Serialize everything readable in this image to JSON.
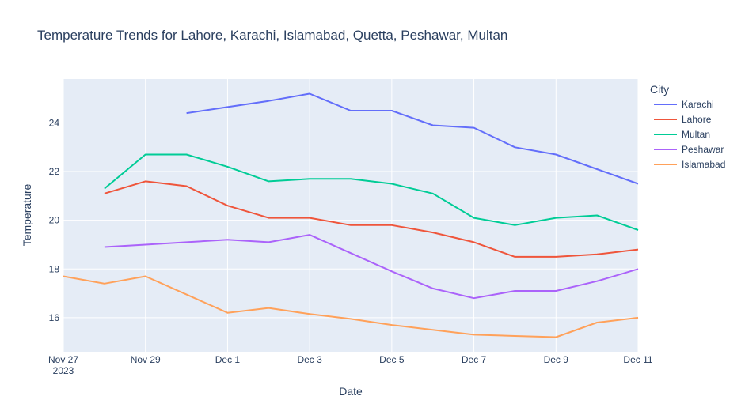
{
  "chart_data": {
    "type": "line",
    "title": "Temperature Trends for Lahore, Karachi, Islamabad, Quetta, Peshawar, Multan",
    "xlabel": "Date",
    "ylabel": "Temperature",
    "legend_title": "City",
    "legend_position": "right",
    "grid": true,
    "x": [
      "2023-11-27",
      "2023-11-28",
      "2023-11-29",
      "2023-11-30",
      "2023-12-01",
      "2023-12-02",
      "2023-12-03",
      "2023-12-04",
      "2023-12-05",
      "2023-12-06",
      "2023-12-07",
      "2023-12-08",
      "2023-12-09",
      "2023-12-10",
      "2023-12-11"
    ],
    "xlim": [
      "2023-11-27",
      "2023-12-11"
    ],
    "ylim": [
      14.6,
      25.8
    ],
    "x_ticks": [
      {
        "date": "2023-11-27",
        "label": "Nov 27",
        "sublabel": "2023"
      },
      {
        "date": "2023-11-29",
        "label": "Nov 29",
        "sublabel": ""
      },
      {
        "date": "2023-12-01",
        "label": "Dec 1",
        "sublabel": ""
      },
      {
        "date": "2023-12-03",
        "label": "Dec 3",
        "sublabel": ""
      },
      {
        "date": "2023-12-05",
        "label": "Dec 5",
        "sublabel": ""
      },
      {
        "date": "2023-12-07",
        "label": "Dec 7",
        "sublabel": ""
      },
      {
        "date": "2023-12-09",
        "label": "Dec 9",
        "sublabel": ""
      },
      {
        "date": "2023-12-11",
        "label": "Dec 11",
        "sublabel": ""
      }
    ],
    "y_ticks": [
      16,
      18,
      20,
      22,
      24
    ],
    "series": [
      {
        "name": "Karachi",
        "color": "#636efa",
        "values": [
          null,
          null,
          null,
          24.4,
          24.65,
          24.9,
          25.2,
          24.5,
          24.5,
          23.9,
          23.8,
          23.0,
          22.7,
          22.1,
          21.5
        ]
      },
      {
        "name": "Lahore",
        "color": "#ef553b",
        "values": [
          null,
          21.1,
          21.6,
          21.4,
          20.6,
          20.1,
          20.1,
          19.8,
          19.8,
          19.5,
          19.1,
          18.5,
          18.5,
          18.6,
          18.8
        ]
      },
      {
        "name": "Multan",
        "color": "#00cc96",
        "values": [
          null,
          21.3,
          22.7,
          22.7,
          22.2,
          21.6,
          21.7,
          21.7,
          21.5,
          21.1,
          20.1,
          19.8,
          20.1,
          20.2,
          19.6
        ]
      },
      {
        "name": "Peshawar",
        "color": "#ab63fa",
        "values": [
          null,
          18.9,
          19.0,
          19.1,
          19.2,
          19.1,
          19.4,
          18.65,
          17.9,
          17.2,
          16.8,
          17.1,
          17.1,
          17.5,
          18.0
        ]
      },
      {
        "name": "Islamabad",
        "color": "#ffa15a",
        "values": [
          17.7,
          17.4,
          17.7,
          16.95,
          16.2,
          16.4,
          16.15,
          15.95,
          15.7,
          15.5,
          15.3,
          15.25,
          15.2,
          15.8,
          16.0
        ]
      }
    ]
  }
}
